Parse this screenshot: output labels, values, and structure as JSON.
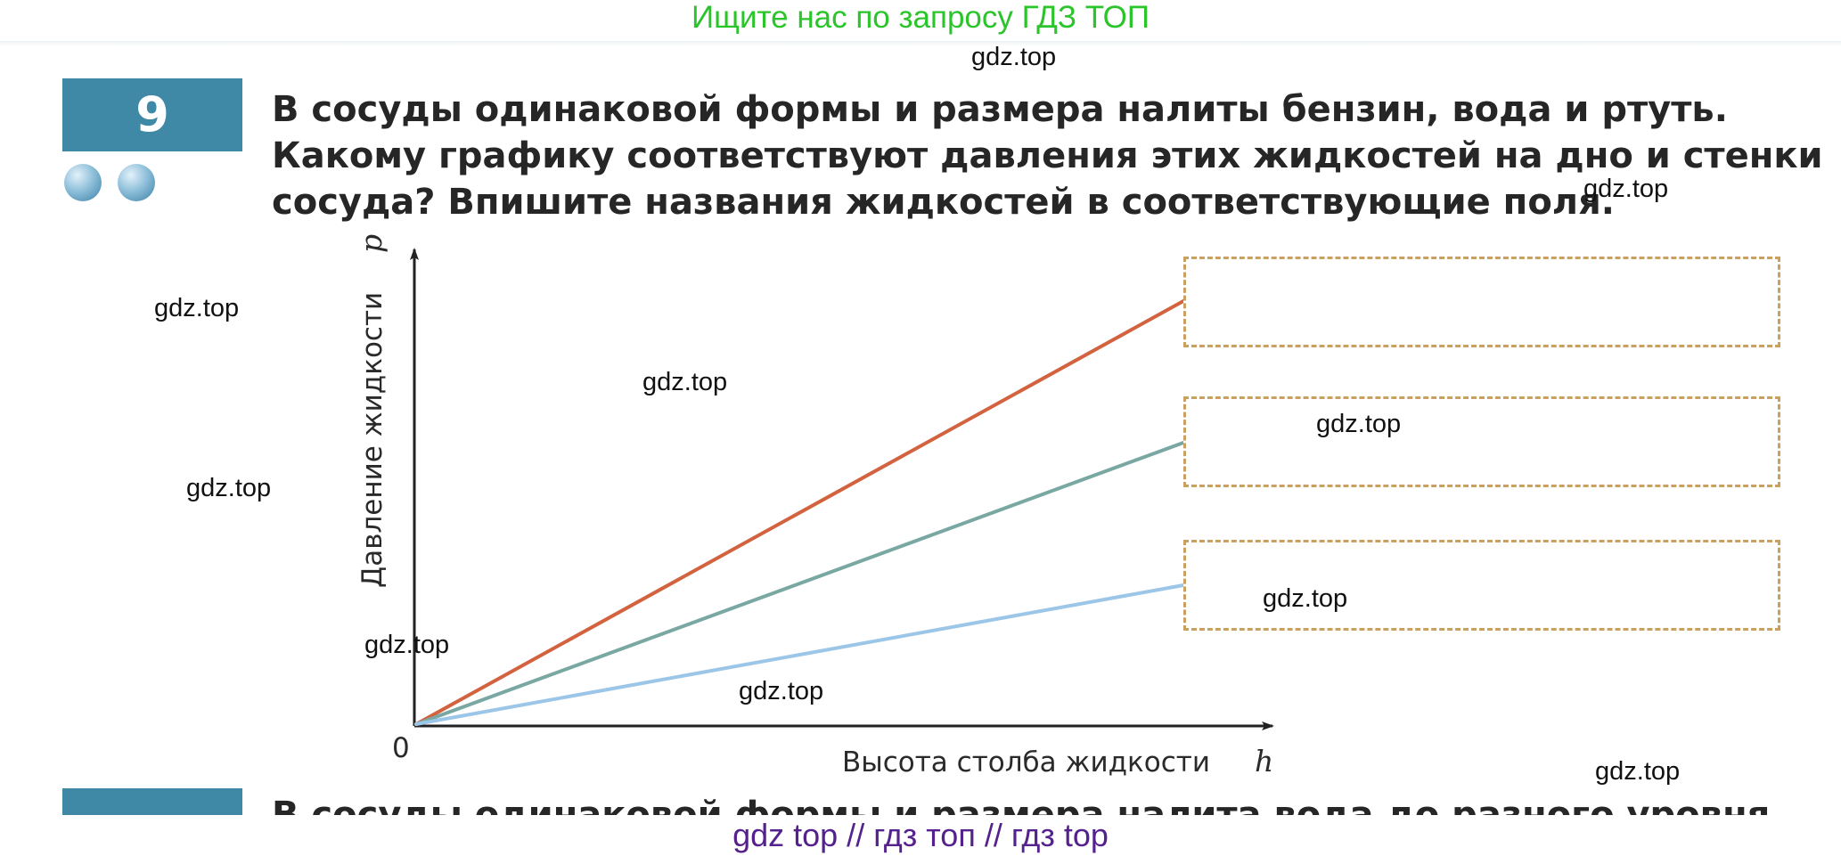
{
  "banner": "Ищите нас по запросу ГДЗ ТОП",
  "task": {
    "number": "9",
    "question_lines": [
      "В сосуды одинаковой формы и размера налиты бензин, вода и ртуть.",
      "Какому графику соответствуют давления этих жидкостей на дно и стенки",
      "сосуда? Впишите названия жидкостей в соответствующие поля."
    ]
  },
  "graph": {
    "y_label_text": "Давление жидкости",
    "y_label_var": "p",
    "x_label_text": "Высота столба жидкости",
    "x_label_var": "h",
    "origin": "0",
    "lines": [
      {
        "color": "#d3623f"
      },
      {
        "color": "#79a8a3"
      },
      {
        "color": "#9cc6e8"
      }
    ]
  },
  "answer_fields": [
    {
      "value": ""
    },
    {
      "value": ""
    },
    {
      "value": ""
    }
  ],
  "next_task": {
    "partial_text": "В сосуды одинаковой формы и размера налита вода до разного уровня"
  },
  "watermarks": [
    "gdz.top",
    "gdz.top",
    "gdz.top",
    "gdz.top",
    "gdz.top",
    "gdz.top",
    "gdz.top",
    "gdz.top",
    "gdz.top",
    "gdz.top",
    "gdz.top"
  ],
  "footer": "gdz top  //  гдз топ  //  гдз top"
}
